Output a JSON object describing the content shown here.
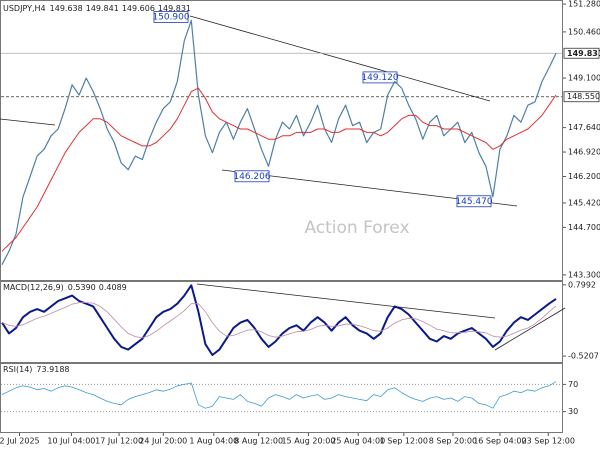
{
  "chart_data": [
    {
      "type": "line",
      "title": "USDJPY,H4",
      "ohlc": [
        149.638,
        149.841,
        149.606,
        149.831
      ],
      "watermark": "Action Forex",
      "xlim": [
        0,
        79
      ],
      "ylim": [
        143.15,
        151.4
      ],
      "yticks": [
        {
          "value": 151.28,
          "label": "151.280"
        },
        {
          "value": 150.46,
          "label": "150.460"
        },
        {
          "value": 149.1,
          "label": "149.100"
        },
        {
          "value": 147.64,
          "label": "147.640"
        },
        {
          "value": 146.92,
          "label": "146.920"
        },
        {
          "value": 146.2,
          "label": "146.200"
        },
        {
          "value": 145.42,
          "label": "145.420"
        },
        {
          "value": 144.7,
          "label": "144.700"
        },
        {
          "value": 143.3,
          "label": "143.300"
        }
      ],
      "grid": false,
      "last_price": 149.831,
      "level": {
        "value": 148.55,
        "label": "148.550"
      },
      "annotations": [
        {
          "value": 150.9,
          "label": "150.900"
        },
        {
          "value": 149.12,
          "label": "149.120"
        },
        146.206,
        {
          "value": 145.47,
          "label": "145.470"
        }
      ],
      "series": [
        {
          "color": "#4f7fa6",
          "width": 1.2,
          "values": [
            143.6,
            144.0,
            144.5,
            145.6,
            146.2,
            146.8,
            147.0,
            147.4,
            147.6,
            148.2,
            148.9,
            148.6,
            149.1,
            148.7,
            148.2,
            147.6,
            147.2,
            146.6,
            146.4,
            146.8,
            146.7,
            147.3,
            147.8,
            148.2,
            148.4,
            149.0,
            150.2,
            150.8,
            148.6,
            147.4,
            146.9,
            147.5,
            147.8,
            147.3,
            147.8,
            148.2,
            147.6,
            147.0,
            146.5,
            147.3,
            147.8,
            147.6,
            148.0,
            147.4,
            147.8,
            148.3,
            147.6,
            147.2,
            147.9,
            148.3,
            147.7,
            147.8,
            147.2,
            147.5,
            147.6,
            148.6,
            149.0,
            148.8,
            148.3,
            147.9,
            147.3,
            147.8,
            148.0,
            147.4,
            147.6,
            147.8,
            147.2,
            147.5,
            146.9,
            146.5,
            145.6,
            147.0,
            147.4,
            148.0,
            147.8,
            148.3,
            148.4,
            149.0,
            149.4,
            149.83
          ]
        },
        {
          "color": "#e03030",
          "width": 1,
          "values": [
            144.0,
            144.2,
            144.4,
            144.7,
            145.0,
            145.3,
            145.7,
            146.1,
            146.5,
            146.9,
            147.2,
            147.5,
            147.7,
            147.9,
            147.9,
            147.8,
            147.6,
            147.4,
            147.3,
            147.2,
            147.1,
            147.1,
            147.2,
            147.4,
            147.6,
            147.9,
            148.3,
            148.7,
            148.8,
            148.5,
            148.1,
            147.9,
            147.8,
            147.7,
            147.6,
            147.6,
            147.5,
            147.4,
            147.3,
            147.3,
            147.4,
            147.4,
            147.5,
            147.5,
            147.5,
            147.6,
            147.6,
            147.5,
            147.5,
            147.6,
            147.6,
            147.6,
            147.5,
            147.5,
            147.4,
            147.5,
            147.7,
            147.9,
            148.0,
            148.0,
            147.8,
            147.7,
            147.7,
            147.6,
            147.6,
            147.6,
            147.5,
            147.4,
            147.3,
            147.2,
            147.0,
            147.1,
            147.3,
            147.4,
            147.5,
            147.6,
            147.8,
            148.0,
            148.3,
            148.6
          ]
        }
      ]
    },
    {
      "type": "line",
      "title": "MACD(12,26,9)",
      "readout": [
        {
          "value": 0.539,
          "label": "0.5390"
        },
        0.4089
      ],
      "xlim": [
        0,
        79
      ],
      "ylim": [
        -0.63,
        0.87
      ],
      "yticks": [
        0.7992,
        -0.5207
      ],
      "grid": false,
      "series": [
        {
          "color": "#0a1a8c",
          "width": 2,
          "values": [
            0.1,
            -0.1,
            0.0,
            0.2,
            0.3,
            0.35,
            0.3,
            0.4,
            0.5,
            0.55,
            0.6,
            0.5,
            0.45,
            0.4,
            0.2,
            0.0,
            -0.2,
            -0.35,
            -0.4,
            -0.3,
            -0.2,
            0.0,
            0.2,
            0.3,
            0.35,
            0.45,
            0.6,
            0.79,
            0.3,
            -0.3,
            -0.5,
            -0.4,
            -0.2,
            0.0,
            0.1,
            0.15,
            0.0,
            -0.2,
            -0.35,
            -0.25,
            -0.1,
            0.0,
            0.05,
            -0.05,
            0.1,
            0.2,
            0.1,
            -0.05,
            0.1,
            0.2,
            0.05,
            -0.05,
            -0.1,
            -0.2,
            -0.1,
            0.2,
            0.4,
            0.35,
            0.25,
            0.1,
            -0.05,
            -0.2,
            -0.25,
            -0.15,
            -0.2,
            -0.1,
            -0.05,
            0.0,
            -0.1,
            -0.2,
            -0.35,
            -0.25,
            -0.05,
            0.1,
            0.2,
            0.15,
            0.25,
            0.35,
            0.45,
            0.539
          ]
        },
        {
          "color": "#c08aa8",
          "width": 0.8,
          "values": [
            0.1,
            0.05,
            0.03,
            0.06,
            0.12,
            0.18,
            0.22,
            0.27,
            0.33,
            0.38,
            0.44,
            0.47,
            0.47,
            0.46,
            0.4,
            0.3,
            0.16,
            0.02,
            -0.1,
            -0.16,
            -0.18,
            -0.14,
            -0.06,
            0.04,
            0.13,
            0.22,
            0.32,
            0.45,
            0.45,
            0.3,
            0.1,
            -0.06,
            -0.15,
            -0.14,
            -0.09,
            -0.04,
            -0.03,
            -0.07,
            -0.14,
            -0.17,
            -0.15,
            -0.11,
            -0.07,
            -0.06,
            -0.03,
            0.03,
            0.05,
            0.03,
            0.04,
            0.07,
            0.07,
            0.04,
            0.0,
            -0.05,
            -0.06,
            0.0,
            0.09,
            0.15,
            0.18,
            0.17,
            0.12,
            0.05,
            -0.02,
            -0.05,
            -0.09,
            -0.09,
            -0.08,
            -0.06,
            -0.07,
            -0.09,
            -0.15,
            -0.17,
            -0.15,
            -0.1,
            -0.04,
            0.0,
            0.08,
            0.18,
            0.3,
            0.4089
          ]
        }
      ]
    },
    {
      "type": "line",
      "title": "RSI(14)",
      "readout": [
        73.9188
      ],
      "xlim": [
        0,
        79
      ],
      "ylim": [
        0,
        100
      ],
      "yticks": [
        70,
        30
      ],
      "grid": true,
      "xticks": [
        {
          "value": 2.5,
          "label": "2 Jul 2025"
        },
        {
          "value": 9.9,
          "label": "10 Jul 04:00"
        },
        {
          "value": 16.7,
          "label": "17 Jul 12:00"
        },
        {
          "value": 23,
          "label": "24 Jul 20:00"
        },
        {
          "value": 30.2,
          "label": "1 Aug 04:00"
        },
        {
          "value": 36.6,
          "label": "8 Aug 12:00"
        },
        {
          "value": 43.7,
          "label": "15 Aug 20:00"
        },
        {
          "value": 50.8,
          "label": "25 Aug 04:00"
        },
        {
          "value": 57.3,
          "label": "1 Sep 12:00"
        },
        {
          "value": 64.3,
          "label": "8 Sep 20:00"
        },
        {
          "value": 71,
          "label": "16 Sep 04:00"
        },
        {
          "value": 77.9,
          "label": "23 Sep 12:00"
        }
      ],
      "series": [
        {
          "color": "#3a9ad9",
          "width": 0.8,
          "values": [
            55,
            60,
            65,
            68,
            66,
            62,
            64,
            60,
            65,
            68,
            66,
            62,
            58,
            55,
            50,
            45,
            42,
            40,
            48,
            52,
            55,
            58,
            62,
            60,
            63,
            68,
            70,
            72,
            40,
            35,
            38,
            52,
            50,
            48,
            55,
            45,
            42,
            38,
            50,
            55,
            52,
            48,
            55,
            50,
            53,
            55,
            48,
            50,
            55,
            52,
            50,
            48,
            46,
            55,
            52,
            62,
            65,
            58,
            52,
            48,
            45,
            50,
            52,
            48,
            50,
            45,
            52,
            50,
            42,
            40,
            35,
            52,
            55,
            60,
            58,
            62,
            60,
            65,
            68,
            73.9188
          ]
        }
      ]
    }
  ]
}
